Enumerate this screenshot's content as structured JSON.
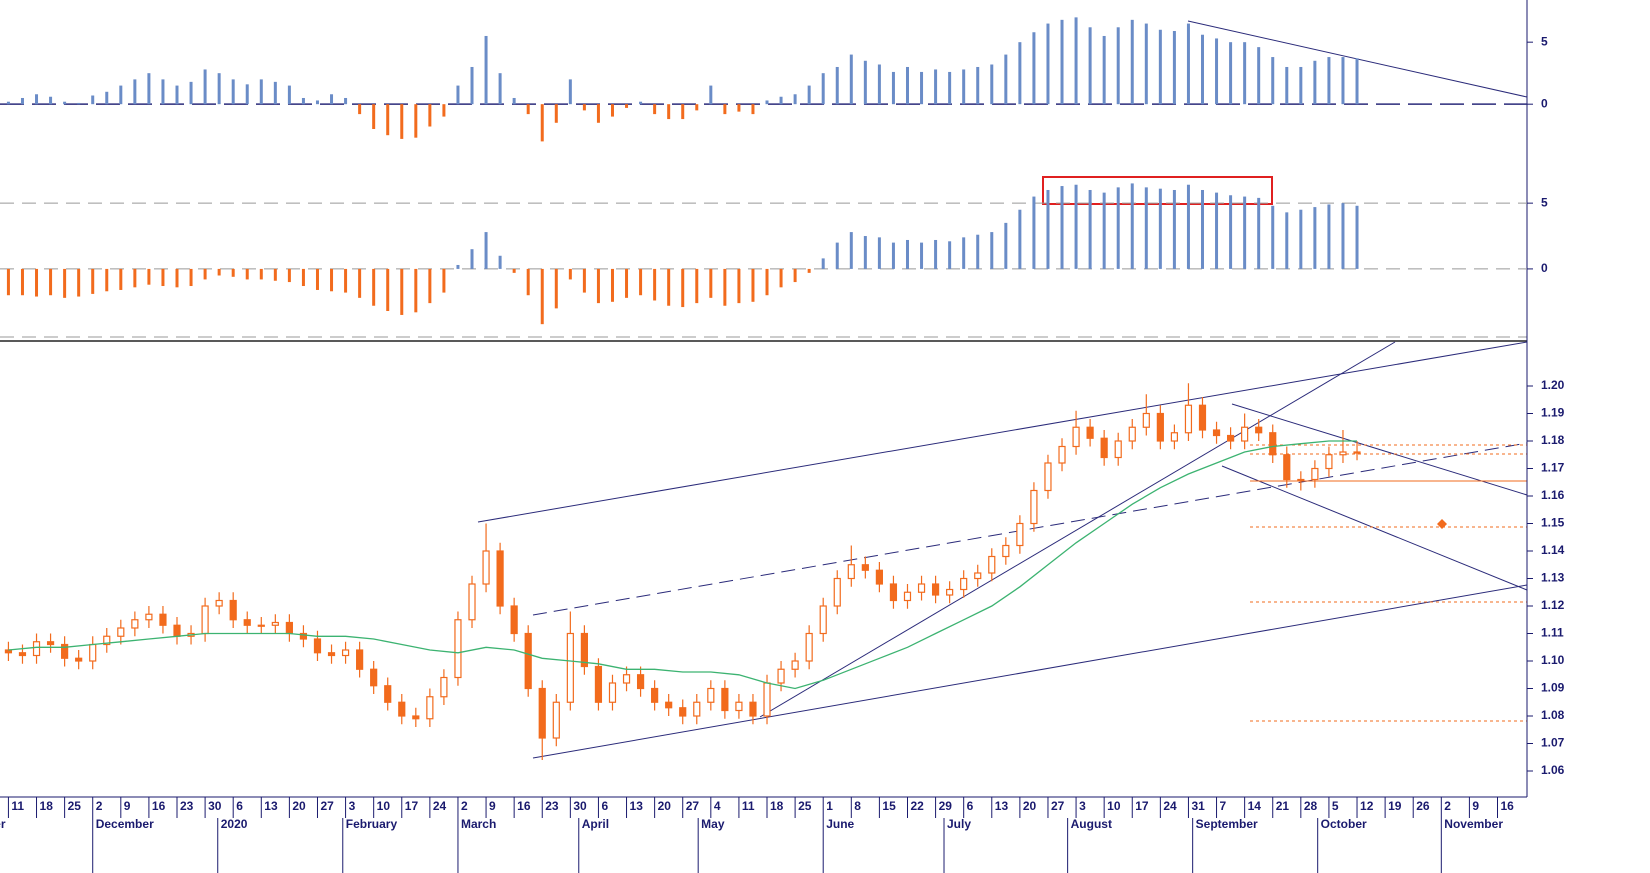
{
  "chart_data": [
    {
      "type": "bar",
      "xlim": [
        -0.3,
        54.05
      ],
      "ylim": [
        -4.5,
        8.4
      ],
      "yticks": [
        0,
        5
      ],
      "zero_line": true,
      "color_positive": "#6a8cc7",
      "color_negative": "#f26b1d",
      "x": [
        0,
        0.5,
        1,
        1.5,
        2,
        2.5,
        3,
        3.5,
        4,
        4.5,
        5,
        5.5,
        6,
        6.5,
        7,
        7.5,
        8,
        8.5,
        9,
        9.5,
        10,
        10.5,
        11,
        11.5,
        12,
        12.5,
        13,
        13.5,
        14,
        14.5,
        15,
        15.5,
        16,
        16.5,
        17,
        17.5,
        18,
        18.5,
        19,
        19.5,
        20,
        20.5,
        21,
        21.5,
        22,
        22.5,
        23,
        23.5,
        24,
        24.5,
        25,
        25.5,
        26,
        26.5,
        27,
        27.5,
        28,
        28.5,
        29,
        29.5,
        30,
        30.5,
        31,
        31.5,
        32,
        32.5,
        33,
        33.5,
        34,
        34.5,
        35,
        35.5,
        36,
        36.5,
        37,
        37.5,
        38,
        38.5,
        39,
        39.5,
        40,
        40.5,
        41,
        41.5,
        42,
        42.5,
        43,
        43.5,
        44,
        44.5,
        45,
        45.5,
        46,
        46.5,
        47,
        47.5,
        48
      ],
      "values": [
        0.2,
        0.5,
        0.8,
        0.6,
        0.2,
        0.1,
        0.7,
        1.0,
        1.5,
        2.0,
        2.5,
        2.0,
        1.5,
        1.8,
        2.8,
        2.5,
        2.0,
        1.6,
        2.0,
        1.8,
        1.5,
        0.5,
        0.3,
        0.8,
        0.5,
        -0.8,
        -2,
        -2.5,
        -2.8,
        -2.7,
        -1.8,
        -1.0,
        1.5,
        3.0,
        5.5,
        2.5,
        0.5,
        -0.8,
        -3.0,
        -1.5,
        2.0,
        -0.5,
        -1.5,
        -1.0,
        -0.3,
        0.2,
        -0.8,
        -1.2,
        -1.2,
        -0.5,
        1.5,
        -0.8,
        -0.6,
        -0.8,
        0.3,
        0.6,
        0.8,
        1.5,
        2.5,
        3.0,
        4.0,
        3.5,
        3.2,
        2.6,
        3.0,
        2.6,
        2.8,
        2.6,
        2.8,
        3.0,
        3.2,
        4.0,
        5.0,
        5.8,
        6.5,
        6.8,
        7.0,
        6.2,
        5.5,
        6.2,
        6.8,
        6.5,
        6.0,
        5.9,
        6.5,
        5.6,
        5.3,
        5.0,
        5.0,
        4.6,
        3.8,
        3.0,
        3.0,
        3.5,
        3.8,
        3.8,
        3.7
      ]
    },
    {
      "type": "bar",
      "xlim": [
        -0.3,
        54.05
      ],
      "ylim": [
        -5.1,
        7.9
      ],
      "yticks": [
        0,
        5
      ],
      "grid": true,
      "color_positive": "#6a8cc7",
      "color_negative": "#f26b1d",
      "x": [
        0,
        0.5,
        1,
        1.5,
        2,
        2.5,
        3,
        3.5,
        4,
        4.5,
        5,
        5.5,
        6,
        6.5,
        7,
        7.5,
        8,
        8.5,
        9,
        9.5,
        10,
        10.5,
        11,
        11.5,
        12,
        12.5,
        13,
        13.5,
        14,
        14.5,
        15,
        15.5,
        16,
        16.5,
        17,
        17.5,
        18,
        18.5,
        19,
        19.5,
        20,
        20.5,
        21,
        21.5,
        22,
        22.5,
        23,
        23.5,
        24,
        24.5,
        25,
        25.5,
        26,
        26.5,
        27,
        27.5,
        28,
        28.5,
        29,
        29.5,
        30,
        30.5,
        31,
        31.5,
        32,
        32.5,
        33,
        33.5,
        34,
        34.5,
        35,
        35.5,
        36,
        36.5,
        37,
        37.5,
        38,
        38.5,
        39,
        39.5,
        40,
        40.5,
        41,
        41.5,
        42,
        42.5,
        43,
        43.5,
        44,
        44.5,
        45,
        45.5,
        46,
        46.5,
        47,
        47.5,
        48
      ],
      "values": [
        -2.0,
        -2.0,
        -2.1,
        -2.0,
        -2.2,
        -2.1,
        -1.9,
        -1.7,
        -1.6,
        -1.4,
        -1.2,
        -1.3,
        -1.4,
        -1.3,
        -0.8,
        -0.5,
        -0.6,
        -0.8,
        -0.8,
        -0.9,
        -1.0,
        -1.3,
        -1.6,
        -1.7,
        -1.8,
        -2.2,
        -2.8,
        -3.2,
        -3.5,
        -3.3,
        -2.6,
        -1.8,
        0.3,
        1.5,
        2.8,
        1.0,
        -0.3,
        -2.0,
        -4.2,
        -3.0,
        -0.8,
        -1.8,
        -2.6,
        -2.5,
        -2.2,
        -2.0,
        -2.4,
        -2.8,
        -2.9,
        -2.6,
        -2.2,
        -2.8,
        -2.6,
        -2.5,
        -2.0,
        -1.4,
        -1.0,
        -0.3,
        0.8,
        2.0,
        2.8,
        2.5,
        2.4,
        2.0,
        2.2,
        2.0,
        2.2,
        2.1,
        2.4,
        2.6,
        2.8,
        3.5,
        4.5,
        5.5,
        6.0,
        6.3,
        6.4,
        6.0,
        5.8,
        6.2,
        6.5,
        6.2,
        6.1,
        6.0,
        6.4,
        6.0,
        5.8,
        5.6,
        5.5,
        5.4,
        4.8,
        4.3,
        4.5,
        4.7,
        4.9,
        5.0,
        4.8
      ]
    },
    {
      "type": "candlestick",
      "xlim": [
        -0.3,
        54.05
      ],
      "ylim": [
        1.05,
        1.216
      ],
      "yticks": [
        1.06,
        1.07,
        1.08,
        1.09,
        {
          "value": 1.1,
          "label": "1.10"
        },
        1.11,
        1.12,
        1.13,
        1.14,
        1.15,
        1.16,
        1.17,
        1.18,
        1.19,
        {
          "value": 1.2,
          "label": "1.20"
        }
      ],
      "color": "#f26b1d",
      "xticks": [
        {
          "value": 0,
          "label": "11"
        },
        {
          "value": 1,
          "label": "18"
        },
        {
          "value": 2,
          "label": "25"
        },
        {
          "value": 3,
          "label": "2"
        },
        {
          "value": 4,
          "label": "9"
        },
        {
          "value": 5,
          "label": "16"
        },
        {
          "value": 6,
          "label": "23"
        },
        {
          "value": 7,
          "label": "30"
        },
        {
          "value": 8,
          "label": "6"
        },
        {
          "value": 9,
          "label": "13"
        },
        {
          "value": 10,
          "label": "20"
        },
        {
          "value": 11,
          "label": "27"
        },
        {
          "value": 12,
          "label": "3"
        },
        {
          "value": 13,
          "label": "10"
        },
        {
          "value": 14,
          "label": "17"
        },
        {
          "value": 15,
          "label": "24"
        },
        {
          "value": 16,
          "label": "2"
        },
        {
          "value": 17,
          "label": "9"
        },
        {
          "value": 18,
          "label": "16"
        },
        {
          "value": 19,
          "label": "23"
        },
        {
          "value": 20,
          "label": "30"
        },
        {
          "value": 21,
          "label": "6"
        },
        {
          "value": 22,
          "label": "13"
        },
        {
          "value": 23,
          "label": "20"
        },
        {
          "value": 24,
          "label": "27"
        },
        {
          "value": 25,
          "label": "4"
        },
        {
          "value": 26,
          "label": "11"
        },
        {
          "value": 27,
          "label": "18"
        },
        {
          "value": 28,
          "label": "25"
        },
        {
          "value": 29,
          "label": "1"
        },
        {
          "value": 30,
          "label": "8"
        },
        {
          "value": 31,
          "label": "15"
        },
        {
          "value": 32,
          "label": "22"
        },
        {
          "value": 33,
          "label": "29"
        },
        {
          "value": 34,
          "label": "6"
        },
        {
          "value": 35,
          "label": "13"
        },
        {
          "value": 36,
          "label": "20"
        },
        {
          "value": 37,
          "label": "27"
        },
        {
          "value": 38,
          "label": "3"
        },
        {
          "value": 39,
          "label": "10"
        },
        {
          "value": 40,
          "label": "17"
        },
        {
          "value": 41,
          "label": "24"
        },
        {
          "value": 42,
          "label": "31"
        },
        {
          "value": 43,
          "label": "7"
        },
        {
          "value": 44,
          "label": "14"
        },
        {
          "value": 45,
          "label": "21"
        },
        {
          "value": 46,
          "label": "28"
        },
        {
          "value": 47,
          "label": "5"
        },
        {
          "value": 48,
          "label": "12"
        },
        {
          "value": 49,
          "label": "19"
        },
        {
          "value": 50,
          "label": "26"
        },
        {
          "value": 51,
          "label": "2"
        },
        {
          "value": 52,
          "label": "9"
        },
        {
          "value": 53,
          "label": "16"
        }
      ],
      "months": [
        {
          "value": -2.3,
          "label": "November"
        },
        {
          "value": 3,
          "label": "December"
        },
        {
          "value": 7.45,
          "label": "2020"
        },
        {
          "value": 11.9,
          "label": "February"
        },
        {
          "value": 16,
          "label": "March"
        },
        {
          "value": 20.3,
          "label": "April"
        },
        {
          "value": 24.55,
          "label": "May"
        },
        {
          "value": 29,
          "label": "June"
        },
        {
          "value": 33.3,
          "label": "July"
        },
        {
          "value": 37.7,
          "label": "August"
        },
        {
          "value": 42.15,
          "label": "September"
        },
        {
          "value": 46.6,
          "label": "October"
        },
        {
          "value": 51,
          "label": "November"
        }
      ],
      "x": [
        0,
        0.5,
        1,
        1.5,
        2,
        2.5,
        3,
        3.5,
        4,
        4.5,
        5,
        5.5,
        6,
        6.5,
        7,
        7.5,
        8,
        8.5,
        9,
        9.5,
        10,
        10.5,
        11,
        11.5,
        12,
        12.5,
        13,
        13.5,
        14,
        14.5,
        15,
        15.5,
        16,
        16.5,
        17,
        17.5,
        18,
        18.5,
        19,
        19.5,
        20,
        20.5,
        21,
        21.5,
        22,
        22.5,
        23,
        23.5,
        24,
        24.5,
        25,
        25.5,
        26,
        26.5,
        27,
        27.5,
        28,
        28.5,
        29,
        29.5,
        30,
        30.5,
        31,
        31.5,
        32,
        32.5,
        33,
        33.5,
        34,
        34.5,
        35,
        35.5,
        36,
        36.5,
        37,
        37.5,
        38,
        38.5,
        39,
        39.5,
        40,
        40.5,
        41,
        41.5,
        42,
        42.5,
        43,
        43.5,
        44,
        44.5,
        45,
        45.5,
        46,
        46.5,
        47,
        47.5,
        48
      ],
      "open": [
        1.104,
        1.103,
        1.102,
        1.107,
        1.106,
        1.101,
        1.1,
        1.106,
        1.109,
        1.112,
        1.115,
        1.117,
        1.113,
        1.109,
        1.11,
        1.12,
        1.122,
        1.115,
        1.113,
        1.113,
        1.114,
        1.11,
        1.108,
        1.103,
        1.102,
        1.104,
        1.097,
        1.091,
        1.085,
        1.08,
        1.079,
        1.087,
        1.094,
        1.115,
        1.128,
        1.14,
        1.12,
        1.11,
        1.09,
        1.072,
        1.085,
        1.11,
        1.098,
        1.085,
        1.092,
        1.095,
        1.09,
        1.085,
        1.083,
        1.08,
        1.085,
        1.09,
        1.082,
        1.085,
        1.08,
        1.092,
        1.097,
        1.1,
        1.11,
        1.12,
        1.13,
        1.135,
        1.133,
        1.128,
        1.122,
        1.125,
        1.128,
        1.124,
        1.126,
        1.13,
        1.132,
        1.138,
        1.142,
        1.15,
        1.162,
        1.172,
        1.178,
        1.185,
        1.181,
        1.174,
        1.18,
        1.185,
        1.19,
        1.18,
        1.183,
        1.193,
        1.184,
        1.182,
        1.18,
        1.185,
        1.183,
        1.175,
        1.166,
        1.166,
        1.17,
        1.175,
        1.176
      ],
      "high": [
        1.107,
        1.106,
        1.11,
        1.11,
        1.109,
        1.104,
        1.109,
        1.112,
        1.115,
        1.118,
        1.12,
        1.12,
        1.116,
        1.113,
        1.123,
        1.125,
        1.125,
        1.118,
        1.116,
        1.117,
        1.117,
        1.113,
        1.111,
        1.106,
        1.107,
        1.107,
        1.1,
        1.094,
        1.088,
        1.083,
        1.09,
        1.097,
        1.118,
        1.131,
        1.15,
        1.143,
        1.123,
        1.113,
        1.093,
        1.088,
        1.118,
        1.113,
        1.101,
        1.095,
        1.098,
        1.098,
        1.093,
        1.088,
        1.086,
        1.088,
        1.093,
        1.093,
        1.088,
        1.088,
        1.095,
        1.1,
        1.103,
        1.113,
        1.123,
        1.133,
        1.142,
        1.138,
        1.136,
        1.131,
        1.128,
        1.131,
        1.131,
        1.129,
        1.133,
        1.135,
        1.141,
        1.145,
        1.153,
        1.165,
        1.175,
        1.181,
        1.191,
        1.188,
        1.184,
        1.183,
        1.188,
        1.197,
        1.193,
        1.186,
        1.201,
        1.196,
        1.187,
        1.185,
        1.19,
        1.188,
        1.186,
        1.178,
        1.169,
        1.173,
        1.178,
        1.184,
        1.18
      ],
      "low": [
        1.1,
        1.099,
        1.099,
        1.103,
        1.098,
        1.097,
        1.097,
        1.103,
        1.106,
        1.109,
        1.112,
        1.11,
        1.106,
        1.106,
        1.107,
        1.117,
        1.112,
        1.11,
        1.11,
        1.11,
        1.107,
        1.105,
        1.1,
        1.099,
        1.099,
        1.094,
        1.088,
        1.082,
        1.077,
        1.076,
        1.076,
        1.084,
        1.091,
        1.112,
        1.125,
        1.117,
        1.107,
        1.087,
        1.064,
        1.069,
        1.082,
        1.095,
        1.082,
        1.082,
        1.089,
        1.087,
        1.082,
        1.08,
        1.077,
        1.077,
        1.082,
        1.079,
        1.079,
        1.077,
        1.077,
        1.089,
        1.094,
        1.097,
        1.107,
        1.117,
        1.127,
        1.13,
        1.125,
        1.119,
        1.119,
        1.122,
        1.121,
        1.121,
        1.123,
        1.127,
        1.129,
        1.135,
        1.139,
        1.147,
        1.159,
        1.169,
        1.175,
        1.178,
        1.171,
        1.171,
        1.177,
        1.182,
        1.177,
        1.177,
        1.18,
        1.181,
        1.179,
        1.177,
        1.177,
        1.18,
        1.172,
        1.163,
        1.162,
        1.163,
        1.167,
        1.172,
        1.173
      ],
      "close": [
        1.103,
        1.102,
        1.107,
        1.106,
        1.101,
        1.1,
        1.106,
        1.109,
        1.112,
        1.115,
        1.117,
        1.113,
        1.109,
        1.11,
        1.12,
        1.122,
        1.115,
        1.113,
        1.113,
        1.114,
        1.11,
        1.108,
        1.103,
        1.102,
        1.104,
        1.097,
        1.091,
        1.085,
        1.08,
        1.079,
        1.087,
        1.094,
        1.115,
        1.128,
        1.14,
        1.12,
        1.11,
        1.09,
        1.072,
        1.085,
        1.11,
        1.098,
        1.085,
        1.092,
        1.095,
        1.09,
        1.085,
        1.083,
        1.08,
        1.085,
        1.09,
        1.082,
        1.085,
        1.08,
        1.092,
        1.097,
        1.1,
        1.11,
        1.12,
        1.13,
        1.135,
        1.133,
        1.128,
        1.122,
        1.125,
        1.128,
        1.124,
        1.126,
        1.13,
        1.132,
        1.138,
        1.142,
        1.15,
        1.162,
        1.172,
        1.178,
        1.185,
        1.181,
        1.174,
        1.18,
        1.185,
        1.19,
        1.18,
        1.183,
        1.193,
        1.184,
        1.182,
        1.18,
        1.185,
        1.183,
        1.175,
        1.166,
        1.166,
        1.17,
        1.175,
        1.176,
        1.176
      ],
      "moving_average": {
        "color": "#3cb371",
        "x": [
          0,
          1,
          2,
          3,
          4,
          5,
          6,
          7,
          8,
          9,
          10,
          11,
          12,
          13,
          14,
          15,
          16,
          17,
          18,
          19,
          20,
          21,
          22,
          23,
          24,
          25,
          26,
          27,
          28,
          29,
          30,
          31,
          32,
          33,
          34,
          35,
          36,
          37,
          38,
          39,
          40,
          41,
          42,
          43,
          44,
          45,
          46,
          47,
          48
        ],
        "values": [
          1.104,
          1.105,
          1.105,
          1.106,
          1.107,
          1.108,
          1.109,
          1.11,
          1.11,
          1.11,
          1.11,
          1.109,
          1.109,
          1.108,
          1.106,
          1.104,
          1.103,
          1.105,
          1.104,
          1.101,
          1.1,
          1.099,
          1.097,
          1.097,
          1.096,
          1.096,
          1.095,
          1.092,
          1.09,
          1.093,
          1.097,
          1.101,
          1.105,
          1.11,
          1.115,
          1.12,
          1.127,
          1.135,
          1.143,
          1.15,
          1.157,
          1.163,
          1.168,
          1.172,
          1.176,
          1.178,
          1.179,
          1.18,
          1.18
        ]
      }
    }
  ]
}
